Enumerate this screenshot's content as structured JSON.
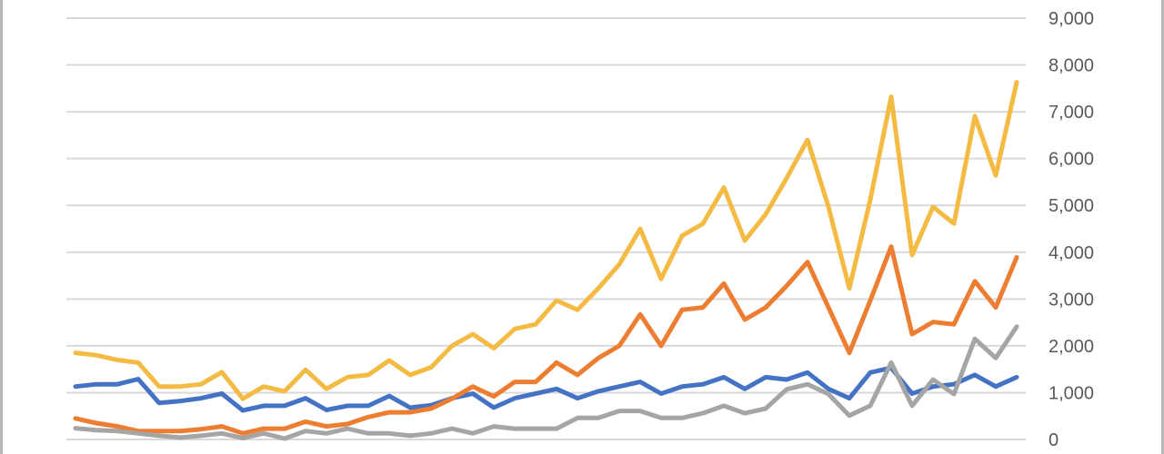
{
  "chart_data": {
    "type": "line",
    "title": "",
    "xlabel": "",
    "ylabel": "",
    "ylim": [
      0,
      9000
    ],
    "y_ticks": [
      "0",
      "1,000",
      "2,000",
      "3,000",
      "4,000",
      "5,000",
      "6,000",
      "7,000",
      "8,000",
      "9,000"
    ],
    "y_axis_side": "right",
    "grid": true,
    "legend": "none",
    "x_tick_labels_note": "",
    "series": [
      {
        "color": "#4472C4",
        "values": [
          1130,
          1180,
          1180,
          1290,
          780,
          820,
          880,
          980,
          620,
          720,
          720,
          880,
          630,
          720,
          720,
          930,
          680,
          730,
          880,
          980,
          680,
          880,
          980,
          1080,
          880,
          1030,
          1130,
          1230,
          980,
          1130,
          1180,
          1330,
          1080,
          1330,
          1280,
          1430,
          1080,
          880,
          1430,
          1530,
          980,
          1130,
          1180,
          1380,
          1130,
          1330
        ]
      },
      {
        "color": "#ED7D31",
        "values": [
          450,
          350,
          280,
          180,
          180,
          180,
          220,
          280,
          130,
          230,
          230,
          380,
          280,
          330,
          480,
          580,
          580,
          660,
          870,
          1130,
          920,
          1230,
          1230,
          1640,
          1380,
          1740,
          2000,
          2670,
          2000,
          2770,
          2820,
          3330,
          2560,
          2820,
          3280,
          3790,
          2820,
          1850,
          2970,
          4120,
          2250,
          2510,
          2460,
          3380,
          2820,
          3890
        ]
      },
      {
        "color": "#A5A5A5",
        "values": [
          240,
          200,
          180,
          130,
          80,
          40,
          80,
          130,
          30,
          130,
          20,
          180,
          130,
          230,
          130,
          130,
          80,
          130,
          230,
          130,
          280,
          230,
          230,
          230,
          460,
          460,
          610,
          610,
          460,
          460,
          560,
          720,
          560,
          660,
          1070,
          1180,
          970,
          510,
          720,
          1640,
          720,
          1280,
          970,
          2150,
          1740,
          2410
        ]
      },
      {
        "color": "#F4BB44",
        "values": [
          1850,
          1800,
          1700,
          1640,
          1130,
          1130,
          1180,
          1440,
          870,
          1130,
          1030,
          1490,
          1080,
          1330,
          1380,
          1690,
          1380,
          1540,
          2000,
          2250,
          1950,
          2360,
          2460,
          2970,
          2770,
          3230,
          3740,
          4500,
          3430,
          4350,
          4610,
          5380,
          4250,
          4810,
          5580,
          6400,
          4970,
          3230,
          5120,
          7320,
          3940,
          4970,
          4610,
          6910,
          5640,
          7630
        ]
      }
    ]
  }
}
